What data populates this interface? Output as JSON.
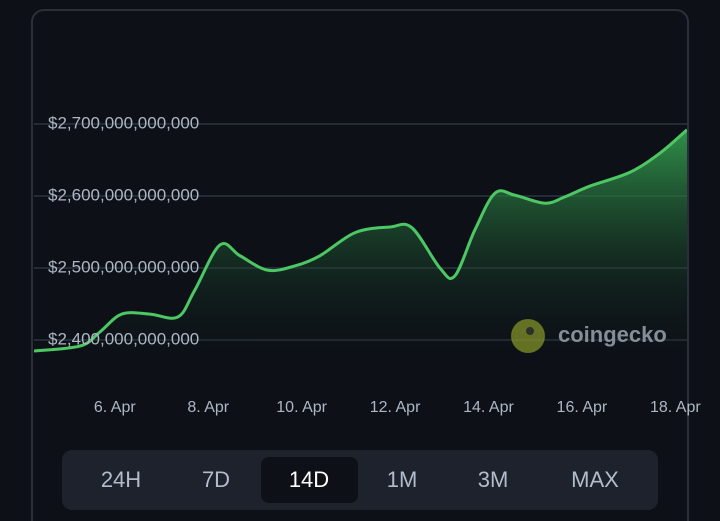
{
  "chart_data": {
    "type": "area",
    "x": [
      4.27,
      5.26,
      5.68,
      6.15,
      6.75,
      7.35,
      7.71,
      8.25,
      8.68,
      9.27,
      9.86,
      10.39,
      11.14,
      11.89,
      12.36,
      12.96,
      13.28,
      13.71,
      14.14,
      14.57,
      15.21,
      15.64,
      16.18,
      17.03,
      17.68,
      18.25
    ],
    "values": [
      2384700000000,
      2391700000000,
      2411100000000,
      2436000000000,
      2436000000000,
      2432000000000,
      2469000000000,
      2532000000000,
      2517000000000,
      2497000000000,
      2503000000000,
      2517000000000,
      2549000000000,
      2557000000000,
      2556000000000,
      2500000000000,
      2489000000000,
      2553000000000,
      2604000000000,
      2601000000000,
      2590000000000,
      2599000000000,
      2614000000000,
      2633000000000,
      2660000000000,
      2692000000000
    ],
    "color": "#4cc764",
    "xlim": [
      4.27,
      18.25
    ],
    "xticks": [
      {
        "value": 6,
        "label": "6. Apr"
      },
      {
        "value": 8,
        "label": "8. Apr"
      },
      {
        "value": 10,
        "label": "10. Apr"
      },
      {
        "value": 12,
        "label": "12. Apr"
      },
      {
        "value": 14,
        "label": "14. Apr"
      },
      {
        "value": 16,
        "label": "16. Apr"
      },
      {
        "value": 18,
        "label": "18. Apr"
      }
    ],
    "ylim": [
      2380000000000,
      2720000000000
    ],
    "yticks": [
      {
        "value": 2400000000000,
        "label": "$2,400,000,000,000"
      },
      {
        "value": 2500000000000,
        "label": "$2,500,000,000,000"
      },
      {
        "value": 2600000000000,
        "label": "$2,600,000,000,000"
      },
      {
        "value": 2700000000000,
        "label": "$2,700,000,000,000"
      }
    ],
    "grid": true,
    "watermark": "coingecko"
  },
  "range_buttons": [
    "24H",
    "7D",
    "14D",
    "1M",
    "3M",
    "MAX"
  ],
  "selected_range": 2
}
